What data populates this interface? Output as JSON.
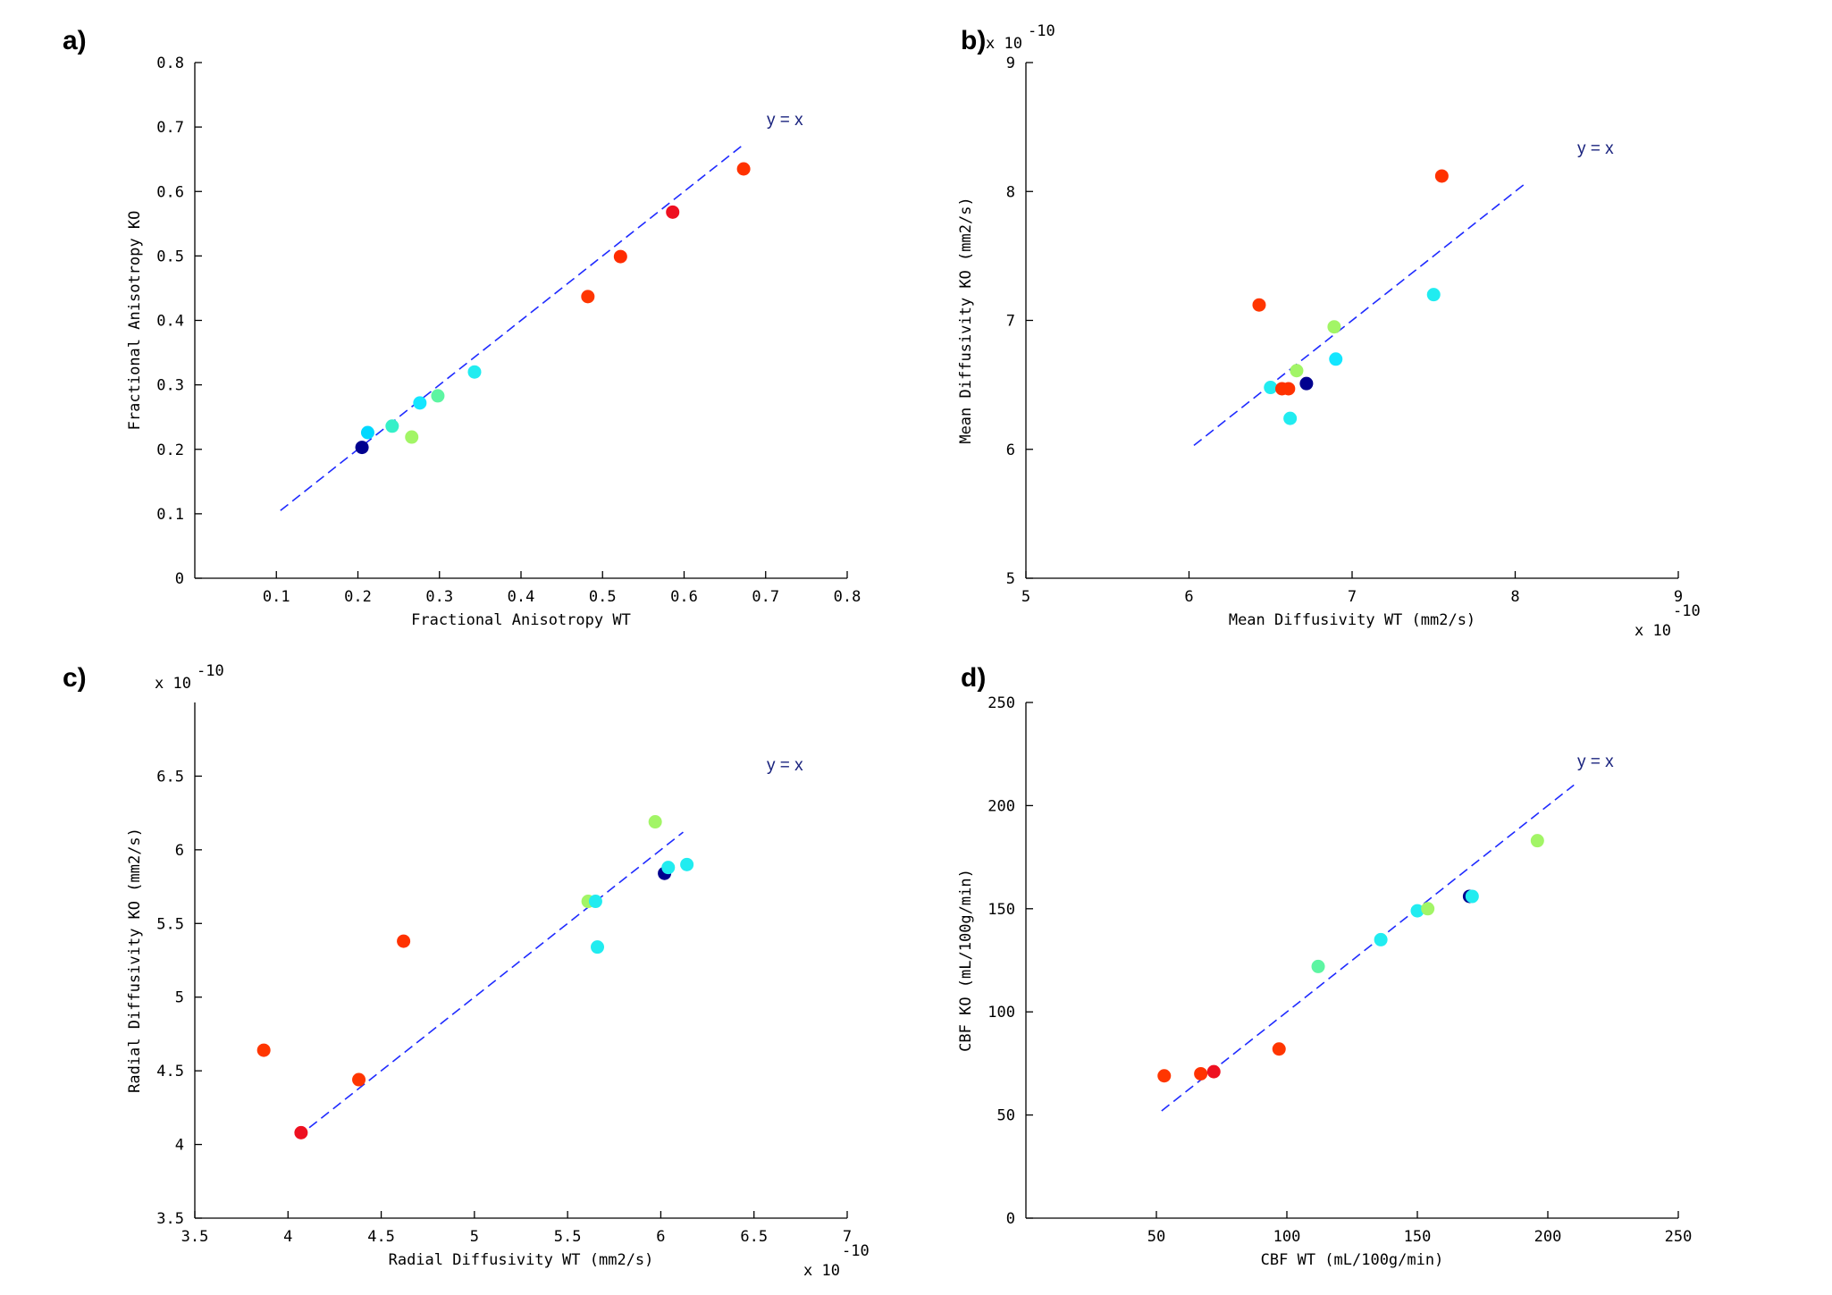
{
  "chart_data": [
    {
      "type": "scatter",
      "panel_label": "a)",
      "xlabel": "Fractional Anisotropy WT",
      "ylabel": "Fractional Anisotropy KO",
      "xlim": [
        0,
        0.8
      ],
      "ylim": [
        0,
        0.8
      ],
      "xticks": [
        "0.1",
        "0.2",
        "0.3",
        "0.4",
        "0.5",
        "0.6",
        "0.7",
        "0.8"
      ],
      "xtick_values": [
        0.1,
        0.2,
        0.3,
        0.4,
        0.5,
        0.6,
        0.7,
        0.8
      ],
      "yticks": [
        "0",
        "0.1",
        "0.2",
        "0.3",
        "0.4",
        "0.5",
        "0.6",
        "0.7",
        "0.8"
      ],
      "ytick_values": [
        0,
        0.1,
        0.2,
        0.3,
        0.4,
        0.5,
        0.6,
        0.7,
        0.8
      ],
      "x_exponent": "",
      "y_exponent": "",
      "reference_line": {
        "label": "y = x",
        "from": 0.105,
        "to": 0.67,
        "color": "#1f2bff"
      },
      "points": [
        {
          "x": 0.205,
          "y": 0.203,
          "color": "#00008f"
        },
        {
          "x": 0.212,
          "y": 0.226,
          "color": "#00d8ff"
        },
        {
          "x": 0.242,
          "y": 0.236,
          "color": "#35f0c8"
        },
        {
          "x": 0.266,
          "y": 0.219,
          "color": "#a2f566"
        },
        {
          "x": 0.276,
          "y": 0.272,
          "color": "#14e6ff"
        },
        {
          "x": 0.298,
          "y": 0.283,
          "color": "#5df5a2"
        },
        {
          "x": 0.343,
          "y": 0.32,
          "color": "#21ecf0"
        },
        {
          "x": 0.482,
          "y": 0.437,
          "color": "#ff3600"
        },
        {
          "x": 0.522,
          "y": 0.499,
          "color": "#ff2c00"
        },
        {
          "x": 0.586,
          "y": 0.568,
          "color": "#ee1020"
        },
        {
          "x": 0.673,
          "y": 0.635,
          "color": "#ff3200"
        }
      ]
    },
    {
      "type": "scatter",
      "panel_label": "b)",
      "xlabel": "Mean Diffusivity WT (mm2/s)",
      "ylabel": "Mean Diffusivity KO (mm2/s)",
      "xlim": [
        5,
        9
      ],
      "ylim": [
        5,
        9
      ],
      "xticks": [
        "5",
        "6",
        "7",
        "8",
        "9"
      ],
      "xtick_values": [
        5,
        6,
        7,
        8,
        9
      ],
      "yticks": [
        "5",
        "6",
        "7",
        "8",
        "9"
      ],
      "ytick_values": [
        5,
        6,
        7,
        8,
        9
      ],
      "x_exponent": "x 10",
      "x_exponent_power": "-10",
      "y_exponent": "x 10",
      "y_exponent_power": "-10",
      "reference_line": {
        "label": "y = x",
        "from": 6.03,
        "to": 8.07,
        "color": "#1f2bff"
      },
      "points": [
        {
          "x": 6.43,
          "y": 7.12,
          "color": "#ff3600"
        },
        {
          "x": 6.5,
          "y": 6.48,
          "color": "#21ecf0"
        },
        {
          "x": 6.57,
          "y": 6.47,
          "color": "#ff3200"
        },
        {
          "x": 6.61,
          "y": 6.47,
          "color": "#ff3200"
        },
        {
          "x": 6.62,
          "y": 6.24,
          "color": "#21ecf0"
        },
        {
          "x": 6.66,
          "y": 6.61,
          "color": "#a2f566"
        },
        {
          "x": 6.72,
          "y": 6.51,
          "color": "#00008f"
        },
        {
          "x": 6.89,
          "y": 6.95,
          "color": "#a2f566"
        },
        {
          "x": 6.9,
          "y": 6.7,
          "color": "#14e6ff"
        },
        {
          "x": 7.5,
          "y": 7.2,
          "color": "#21ecf0"
        },
        {
          "x": 7.55,
          "y": 8.12,
          "color": "#ff3200"
        }
      ]
    },
    {
      "type": "scatter",
      "panel_label": "c)",
      "xlabel": "Radial Diffusivity WT (mm2/s)",
      "ylabel": "Radial Diffusivity KO (mm2/s)",
      "xlim": [
        3.5,
        7
      ],
      "ylim": [
        3.5,
        7
      ],
      "xticks": [
        "3.5",
        "4",
        "4.5",
        "5",
        "5.5",
        "6",
        "6.5",
        "7"
      ],
      "xtick_values": [
        3.5,
        4,
        4.5,
        5,
        5.5,
        6,
        6.5,
        7
      ],
      "yticks": [
        "3.5",
        "4",
        "4.5",
        "5",
        "5.5",
        "6",
        "6.5"
      ],
      "ytick_values": [
        3.5,
        4,
        4.5,
        5,
        5.5,
        6,
        6.5
      ],
      "x_exponent": "x 10",
      "x_exponent_power": "-10",
      "y_exponent": "x 10",
      "y_exponent_power": "-10",
      "reference_line": {
        "label": "y = x",
        "from": 4.05,
        "to": 6.12,
        "color": "#1f2bff"
      },
      "points": [
        {
          "x": 3.87,
          "y": 4.64,
          "color": "#ff3600"
        },
        {
          "x": 4.07,
          "y": 4.08,
          "color": "#ee1020"
        },
        {
          "x": 4.38,
          "y": 4.44,
          "color": "#ff3600"
        },
        {
          "x": 4.62,
          "y": 5.38,
          "color": "#ff3200"
        },
        {
          "x": 5.61,
          "y": 5.65,
          "color": "#a2f566"
        },
        {
          "x": 5.65,
          "y": 5.65,
          "color": "#21ecf0"
        },
        {
          "x": 5.66,
          "y": 5.34,
          "color": "#21ecf0"
        },
        {
          "x": 5.97,
          "y": 6.19,
          "color": "#a2f566"
        },
        {
          "x": 6.02,
          "y": 5.84,
          "color": "#00008f"
        },
        {
          "x": 6.04,
          "y": 5.88,
          "color": "#21ecf0"
        },
        {
          "x": 6.14,
          "y": 5.9,
          "color": "#21ecf0"
        }
      ]
    },
    {
      "type": "scatter",
      "panel_label": "d)",
      "xlabel": "CBF WT (mL/100g/min)",
      "ylabel": "CBF KO (mL/100g/min)",
      "xlim": [
        0,
        250
      ],
      "ylim": [
        0,
        250
      ],
      "xticks": [
        "50",
        "100",
        "150",
        "200",
        "250"
      ],
      "xtick_values": [
        50,
        100,
        150,
        200,
        250
      ],
      "yticks": [
        "0",
        "50",
        "100",
        "150",
        "200",
        "250"
      ],
      "ytick_values": [
        0,
        50,
        100,
        150,
        200,
        250
      ],
      "x_exponent": "",
      "y_exponent": "",
      "reference_line": {
        "label": "y = x",
        "from": 52,
        "to": 210,
        "color": "#1f2bff"
      },
      "points": [
        {
          "x": 53,
          "y": 69,
          "color": "#ff3600"
        },
        {
          "x": 67,
          "y": 70,
          "color": "#ff3200"
        },
        {
          "x": 72,
          "y": 71,
          "color": "#ee1020"
        },
        {
          "x": 97,
          "y": 82,
          "color": "#ff3600"
        },
        {
          "x": 112,
          "y": 122,
          "color": "#5df5a2"
        },
        {
          "x": 136,
          "y": 135,
          "color": "#21ecf0"
        },
        {
          "x": 150,
          "y": 149,
          "color": "#21ecf0"
        },
        {
          "x": 154,
          "y": 150,
          "color": "#a2f566"
        },
        {
          "x": 170,
          "y": 156,
          "color": "#00008f"
        },
        {
          "x": 171,
          "y": 156,
          "color": "#21ecf0"
        },
        {
          "x": 196,
          "y": 183,
          "color": "#a2f566"
        }
      ]
    }
  ]
}
